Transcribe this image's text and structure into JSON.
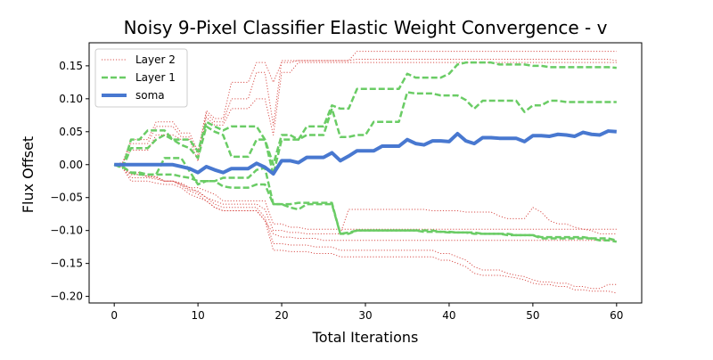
{
  "chart_data": {
    "type": "line",
    "title": "Noisy 9-Pixel Classifier Elastic Weight Convergence - v",
    "xlabel": "Total Iterations",
    "ylabel": "Flux Offset",
    "xlim": [
      -3,
      63
    ],
    "ylim": [
      -0.21,
      0.185
    ],
    "xticks": [
      0,
      10,
      20,
      30,
      40,
      50,
      60
    ],
    "yticks": [
      -0.2,
      -0.15,
      -0.1,
      -0.05,
      0.0,
      0.05,
      0.1,
      0.15
    ],
    "ytick_labels": [
      "−0.20",
      "−0.15",
      "−0.10",
      "−0.05",
      "0.00",
      "0.05",
      "0.10",
      "0.15"
    ],
    "grid": false,
    "legend": {
      "position": "top-left",
      "entries": [
        {
          "label": "Layer 2",
          "color": "#d9534f",
          "style": "dotted"
        },
        {
          "label": "Layer 1",
          "color": "#6acc65",
          "style": "dashed"
        },
        {
          "label": "soma",
          "color": "#4878d0",
          "style": "solid"
        }
      ]
    },
    "x": [
      0,
      1,
      2,
      3,
      4,
      5,
      6,
      7,
      8,
      9,
      10,
      11,
      12,
      13,
      14,
      15,
      16,
      17,
      18,
      19,
      20,
      21,
      22,
      23,
      24,
      25,
      26,
      27,
      28,
      29,
      30,
      31,
      32,
      33,
      34,
      35,
      36,
      37,
      38,
      39,
      40,
      41,
      42,
      43,
      44,
      45,
      46,
      47,
      48,
      49,
      50,
      51,
      52,
      53,
      54,
      55,
      56,
      57,
      58,
      59,
      60
    ],
    "series": [
      {
        "group": "soma",
        "color": "#4878d0",
        "style": "solid",
        "values": [
          0,
          0,
          0,
          0,
          0,
          0,
          0,
          0,
          -0.003,
          -0.006,
          -0.012,
          -0.003,
          -0.008,
          -0.012,
          -0.006,
          -0.006,
          -0.006,
          0.002,
          -0.004,
          -0.014,
          0.006,
          0.006,
          0.003,
          0.011,
          0.011,
          0.011,
          0.018,
          0.006,
          0.013,
          0.021,
          0.021,
          0.021,
          0.028,
          0.028,
          0.028,
          0.038,
          0.032,
          0.03,
          0.036,
          0.036,
          0.035,
          0.047,
          0.036,
          0.032,
          0.041,
          0.041,
          0.04,
          0.04,
          0.04,
          0.035,
          0.044,
          0.044,
          0.043,
          0.046,
          0.045,
          0.043,
          0.049,
          0.046,
          0.045,
          0.051,
          0.05
        ]
      },
      {
        "group": "Layer 1",
        "color": "#6acc65",
        "style": "dashed",
        "values": [
          0,
          -0.005,
          0.038,
          0.038,
          0.052,
          0.052,
          0.052,
          0.038,
          0.038,
          0.038,
          0.02,
          0.065,
          0.058,
          0.052,
          0.058,
          0.058,
          0.058,
          0.058,
          0.038,
          0.0,
          0.045,
          0.045,
          0.038,
          0.058,
          0.058,
          0.058,
          0.09,
          0.085,
          0.085,
          0.115,
          0.115,
          0.115,
          0.115,
          0.115,
          0.115,
          0.138,
          0.132,
          0.132,
          0.132,
          0.132,
          0.138,
          0.152,
          0.155,
          0.155,
          0.155,
          0.155,
          0.152,
          0.152,
          0.152,
          0.152,
          0.15,
          0.15,
          0.148,
          0.148,
          0.148,
          0.148,
          0.148,
          0.148,
          0.148,
          0.148,
          0.147
        ]
      },
      {
        "group": "Layer 1",
        "color": "#6acc65",
        "style": "dashed",
        "values": [
          0,
          -0.005,
          0.025,
          0.025,
          0.025,
          0.038,
          0.045,
          0.038,
          0.03,
          0.025,
          0.01,
          0.058,
          0.05,
          0.045,
          0.012,
          0.012,
          0.012,
          0.038,
          0.038,
          -0.015,
          0.038,
          0.038,
          0.038,
          0.045,
          0.045,
          0.045,
          0.085,
          0.042,
          0.042,
          0.045,
          0.045,
          0.065,
          0.065,
          0.065,
          0.065,
          0.11,
          0.108,
          0.108,
          0.108,
          0.105,
          0.105,
          0.105,
          0.098,
          0.085,
          0.097,
          0.097,
          0.097,
          0.097,
          0.097,
          0.08,
          0.09,
          0.09,
          0.097,
          0.097,
          0.095,
          0.095,
          0.095,
          0.095,
          0.095,
          0.095,
          0.095
        ]
      },
      {
        "group": "Layer 1",
        "color": "#6acc65",
        "style": "dashed",
        "values": [
          0,
          -0.003,
          -0.012,
          -0.012,
          -0.015,
          -0.015,
          0.01,
          0.01,
          0.01,
          -0.01,
          -0.03,
          -0.025,
          -0.025,
          -0.02,
          -0.02,
          -0.02,
          -0.02,
          -0.008,
          -0.005,
          -0.06,
          -0.06,
          -0.06,
          -0.058,
          -0.058,
          -0.058,
          -0.058,
          -0.058,
          -0.105,
          -0.103,
          -0.1,
          -0.1,
          -0.1,
          -0.1,
          -0.1,
          -0.1,
          -0.1,
          -0.1,
          -0.1,
          -0.1,
          -0.102,
          -0.102,
          -0.103,
          -0.103,
          -0.103,
          -0.105,
          -0.105,
          -0.105,
          -0.107,
          -0.107,
          -0.107,
          -0.107,
          -0.11,
          -0.11,
          -0.11,
          -0.11,
          -0.11,
          -0.11,
          -0.112,
          -0.112,
          -0.112,
          -0.115
        ]
      },
      {
        "group": "Layer 1",
        "color": "#6acc65",
        "style": "dashed",
        "values": [
          0,
          -0.003,
          -0.012,
          -0.015,
          -0.015,
          -0.015,
          -0.015,
          -0.015,
          -0.018,
          -0.02,
          -0.025,
          -0.025,
          -0.025,
          -0.033,
          -0.035,
          -0.035,
          -0.035,
          -0.03,
          -0.03,
          -0.06,
          -0.06,
          -0.065,
          -0.068,
          -0.06,
          -0.06,
          -0.06,
          -0.06,
          -0.105,
          -0.105,
          -0.1,
          -0.1,
          -0.1,
          -0.1,
          -0.1,
          -0.1,
          -0.1,
          -0.1,
          -0.102,
          -0.102,
          -0.102,
          -0.103,
          -0.103,
          -0.103,
          -0.105,
          -0.105,
          -0.105,
          -0.105,
          -0.105,
          -0.107,
          -0.107,
          -0.107,
          -0.112,
          -0.112,
          -0.112,
          -0.112,
          -0.112,
          -0.112,
          -0.112,
          -0.115,
          -0.115,
          -0.117
        ]
      },
      {
        "group": "Layer 2",
        "color": "#d9534f",
        "style": "dotted",
        "values": [
          0,
          0.003,
          0.038,
          0.038,
          0.038,
          0.065,
          0.065,
          0.065,
          0.048,
          0.048,
          0.02,
          0.082,
          0.07,
          0.07,
          0.125,
          0.125,
          0.125,
          0.155,
          0.155,
          0.125,
          0.155,
          0.155,
          0.158,
          0.158,
          0.158,
          0.158,
          0.158,
          0.158,
          0.158,
          0.172,
          0.172,
          0.172,
          0.172,
          0.172,
          0.172,
          0.172,
          0.172,
          0.172,
          0.172,
          0.172,
          0.172,
          0.172,
          0.172,
          0.172,
          0.172,
          0.172,
          0.172,
          0.172,
          0.172,
          0.172,
          0.172,
          0.172,
          0.172,
          0.172,
          0.172,
          0.172,
          0.172,
          0.172,
          0.172,
          0.172,
          0.172
        ]
      },
      {
        "group": "Layer 2",
        "color": "#d9534f",
        "style": "dotted",
        "values": [
          0,
          0.003,
          0.032,
          0.032,
          0.032,
          0.058,
          0.058,
          0.058,
          0.042,
          0.042,
          0.015,
          0.078,
          0.065,
          0.065,
          0.1,
          0.1,
          0.1,
          0.14,
          0.14,
          0.06,
          0.158,
          0.158,
          0.158,
          0.158,
          0.158,
          0.158,
          0.158,
          0.158,
          0.158,
          0.16,
          0.16,
          0.16,
          0.16,
          0.16,
          0.16,
          0.16,
          0.16,
          0.16,
          0.16,
          0.16,
          0.16,
          0.16,
          0.16,
          0.16,
          0.16,
          0.16,
          0.16,
          0.16,
          0.16,
          0.16,
          0.16,
          0.16,
          0.16,
          0.16,
          0.16,
          0.16,
          0.16,
          0.16,
          0.16,
          0.16,
          0.158
        ]
      },
      {
        "group": "Layer 2",
        "color": "#d9534f",
        "style": "dotted",
        "values": [
          0,
          0.003,
          0.022,
          0.022,
          0.022,
          0.045,
          0.045,
          0.045,
          0.038,
          0.038,
          0.005,
          0.072,
          0.06,
          0.06,
          0.085,
          0.085,
          0.085,
          0.1,
          0.1,
          0.045,
          0.14,
          0.14,
          0.155,
          0.155,
          0.155,
          0.155,
          0.155,
          0.155,
          0.155,
          0.155,
          0.155,
          0.155,
          0.155,
          0.155,
          0.155,
          0.155,
          0.155,
          0.155,
          0.155,
          0.155,
          0.155,
          0.155,
          0.155,
          0.155,
          0.155,
          0.155,
          0.155,
          0.155,
          0.155,
          0.155,
          0.155,
          0.155,
          0.155,
          0.155,
          0.155,
          0.155,
          0.155,
          0.155,
          0.155,
          0.155,
          0.155
        ]
      },
      {
        "group": "Layer 2",
        "color": "#d9534f",
        "style": "dotted",
        "values": [
          0,
          -0.003,
          -0.015,
          -0.015,
          -0.018,
          -0.02,
          -0.025,
          -0.025,
          -0.028,
          -0.035,
          -0.035,
          -0.04,
          -0.045,
          -0.055,
          -0.055,
          -0.055,
          -0.055,
          -0.055,
          -0.055,
          -0.09,
          -0.09,
          -0.095,
          -0.095,
          -0.098,
          -0.098,
          -0.098,
          -0.098,
          -0.098,
          -0.098,
          -0.098,
          -0.098,
          -0.098,
          -0.098,
          -0.098,
          -0.098,
          -0.098,
          -0.098,
          -0.098,
          -0.098,
          -0.098,
          -0.098,
          -0.098,
          -0.098,
          -0.098,
          -0.098,
          -0.098,
          -0.098,
          -0.098,
          -0.098,
          -0.098,
          -0.098,
          -0.098,
          -0.098,
          -0.098,
          -0.098,
          -0.098,
          -0.098,
          -0.098,
          -0.098,
          -0.098,
          -0.098
        ]
      },
      {
        "group": "Layer 2",
        "color": "#d9534f",
        "style": "dotted",
        "values": [
          0,
          -0.005,
          -0.02,
          -0.02,
          -0.02,
          -0.022,
          -0.025,
          -0.025,
          -0.03,
          -0.038,
          -0.04,
          -0.05,
          -0.055,
          -0.06,
          -0.06,
          -0.06,
          -0.06,
          -0.06,
          -0.068,
          -0.1,
          -0.1,
          -0.103,
          -0.103,
          -0.105,
          -0.105,
          -0.105,
          -0.105,
          -0.105,
          -0.068,
          -0.068,
          -0.068,
          -0.068,
          -0.068,
          -0.068,
          -0.068,
          -0.068,
          -0.068,
          -0.068,
          -0.07,
          -0.07,
          -0.07,
          -0.07,
          -0.072,
          -0.072,
          -0.072,
          -0.072,
          -0.078,
          -0.082,
          -0.082,
          -0.082,
          -0.065,
          -0.072,
          -0.085,
          -0.09,
          -0.09,
          -0.095,
          -0.098,
          -0.1,
          -0.105,
          -0.105,
          -0.105
        ]
      },
      {
        "group": "Layer 2",
        "color": "#d9534f",
        "style": "dotted",
        "values": [
          0,
          -0.005,
          -0.025,
          -0.025,
          -0.025,
          -0.028,
          -0.03,
          -0.03,
          -0.035,
          -0.045,
          -0.05,
          -0.055,
          -0.065,
          -0.07,
          -0.07,
          -0.07,
          -0.07,
          -0.07,
          -0.085,
          -0.105,
          -0.11,
          -0.11,
          -0.112,
          -0.112,
          -0.112,
          -0.115,
          -0.115,
          -0.115,
          -0.115,
          -0.115,
          -0.115,
          -0.115,
          -0.115,
          -0.115,
          -0.115,
          -0.115,
          -0.115,
          -0.115,
          -0.115,
          -0.115,
          -0.115,
          -0.115,
          -0.115,
          -0.115,
          -0.115,
          -0.115,
          -0.115,
          -0.115,
          -0.115,
          -0.115,
          -0.115,
          -0.115,
          -0.115,
          -0.115,
          -0.115,
          -0.115,
          -0.115,
          -0.115,
          -0.115,
          -0.115,
          -0.115
        ]
      },
      {
        "group": "Layer 2",
        "color": "#d9534f",
        "style": "dotted",
        "values": [
          0,
          -0.005,
          -0.012,
          -0.012,
          -0.018,
          -0.018,
          -0.025,
          -0.025,
          -0.03,
          -0.035,
          -0.042,
          -0.05,
          -0.06,
          -0.065,
          -0.065,
          -0.065,
          -0.065,
          -0.065,
          -0.08,
          -0.12,
          -0.12,
          -0.122,
          -0.122,
          -0.122,
          -0.125,
          -0.125,
          -0.125,
          -0.13,
          -0.13,
          -0.13,
          -0.13,
          -0.13,
          -0.13,
          -0.13,
          -0.13,
          -0.13,
          -0.13,
          -0.13,
          -0.13,
          -0.135,
          -0.135,
          -0.14,
          -0.145,
          -0.155,
          -0.16,
          -0.16,
          -0.16,
          -0.165,
          -0.168,
          -0.17,
          -0.175,
          -0.178,
          -0.178,
          -0.18,
          -0.18,
          -0.185,
          -0.185,
          -0.188,
          -0.188,
          -0.182,
          -0.182
        ]
      },
      {
        "group": "Layer 2",
        "color": "#d9534f",
        "style": "dotted",
        "values": [
          0,
          -0.005,
          -0.015,
          -0.015,
          -0.018,
          -0.018,
          -0.025,
          -0.025,
          -0.032,
          -0.04,
          -0.045,
          -0.055,
          -0.065,
          -0.07,
          -0.07,
          -0.07,
          -0.07,
          -0.07,
          -0.085,
          -0.13,
          -0.13,
          -0.132,
          -0.132,
          -0.132,
          -0.135,
          -0.135,
          -0.135,
          -0.14,
          -0.14,
          -0.14,
          -0.14,
          -0.14,
          -0.14,
          -0.14,
          -0.14,
          -0.14,
          -0.14,
          -0.14,
          -0.14,
          -0.145,
          -0.145,
          -0.15,
          -0.155,
          -0.165,
          -0.168,
          -0.168,
          -0.168,
          -0.17,
          -0.172,
          -0.175,
          -0.18,
          -0.182,
          -0.182,
          -0.185,
          -0.185,
          -0.19,
          -0.19,
          -0.192,
          -0.192,
          -0.192,
          -0.195
        ]
      }
    ]
  }
}
